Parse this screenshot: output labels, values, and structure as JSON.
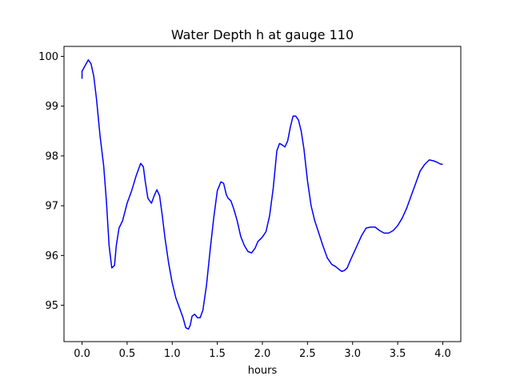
{
  "chart_data": {
    "type": "line",
    "title": "Water Depth h at gauge 110",
    "xlabel": "hours",
    "ylabel": "",
    "xlim": [
      -0.2,
      4.2
    ],
    "ylim": [
      94.27,
      100.2
    ],
    "xticks": [
      0.0,
      0.5,
      1.0,
      1.5,
      2.0,
      2.5,
      3.0,
      3.5,
      4.0
    ],
    "xtick_labels": [
      "0.0",
      "0.5",
      "1.0",
      "1.5",
      "2.0",
      "2.5",
      "3.0",
      "3.5",
      "4.0"
    ],
    "yticks": [
      95,
      96,
      97,
      98,
      99,
      100
    ],
    "ytick_labels": [
      "95",
      "96",
      "97",
      "98",
      "99",
      "100"
    ],
    "grid": false,
    "line_color": "#0000ff",
    "series": [
      {
        "x": [
          0.0,
          0.0,
          0.03,
          0.07,
          0.1,
          0.13,
          0.16,
          0.2,
          0.24,
          0.27,
          0.3,
          0.33,
          0.36,
          0.38,
          0.41,
          0.45,
          0.5,
          0.55,
          0.6,
          0.65,
          0.68,
          0.7,
          0.73,
          0.77,
          0.8,
          0.83,
          0.86,
          0.89,
          0.92,
          0.96,
          1.0,
          1.04,
          1.08,
          1.12,
          1.15,
          1.18,
          1.2,
          1.22,
          1.25,
          1.28,
          1.31,
          1.34,
          1.38,
          1.42,
          1.46,
          1.5,
          1.54,
          1.57,
          1.6,
          1.62,
          1.65,
          1.68,
          1.72,
          1.76,
          1.8,
          1.84,
          1.88,
          1.92,
          1.95,
          2.0,
          2.04,
          2.08,
          2.12,
          2.16,
          2.19,
          2.22,
          2.25,
          2.28,
          2.31,
          2.34,
          2.37,
          2.4,
          2.43,
          2.46,
          2.5,
          2.54,
          2.58,
          2.62,
          2.67,
          2.72,
          2.77,
          2.81,
          2.85,
          2.88,
          2.91,
          2.94,
          2.97,
          3.0,
          3.05,
          3.1,
          3.15,
          3.2,
          3.25,
          3.3,
          3.35,
          3.4,
          3.45,
          3.5,
          3.55,
          3.6,
          3.65,
          3.7,
          3.75,
          3.8,
          3.85,
          3.9,
          3.94,
          3.97,
          4.0
        ],
        "y": [
          99.55,
          99.7,
          99.8,
          99.93,
          99.85,
          99.6,
          99.15,
          98.4,
          97.8,
          97.1,
          96.2,
          95.75,
          95.8,
          96.2,
          96.55,
          96.7,
          97.05,
          97.3,
          97.6,
          97.85,
          97.78,
          97.5,
          97.15,
          97.05,
          97.2,
          97.32,
          97.2,
          96.8,
          96.35,
          95.85,
          95.45,
          95.15,
          94.95,
          94.75,
          94.55,
          94.52,
          94.6,
          94.78,
          94.82,
          94.75,
          94.75,
          94.9,
          95.4,
          96.1,
          96.75,
          97.3,
          97.48,
          97.45,
          97.22,
          97.15,
          97.1,
          96.95,
          96.7,
          96.38,
          96.2,
          96.08,
          96.05,
          96.15,
          96.28,
          96.37,
          96.48,
          96.8,
          97.35,
          98.1,
          98.25,
          98.22,
          98.18,
          98.3,
          98.58,
          98.8,
          98.8,
          98.72,
          98.5,
          98.15,
          97.5,
          97.0,
          96.7,
          96.48,
          96.2,
          95.95,
          95.82,
          95.78,
          95.72,
          95.68,
          95.7,
          95.75,
          95.88,
          96.0,
          96.2,
          96.4,
          96.55,
          96.57,
          96.57,
          96.5,
          96.45,
          96.45,
          96.5,
          96.6,
          96.75,
          96.95,
          97.2,
          97.45,
          97.7,
          97.83,
          97.92,
          97.9,
          97.87,
          97.84,
          97.83
        ]
      }
    ]
  }
}
